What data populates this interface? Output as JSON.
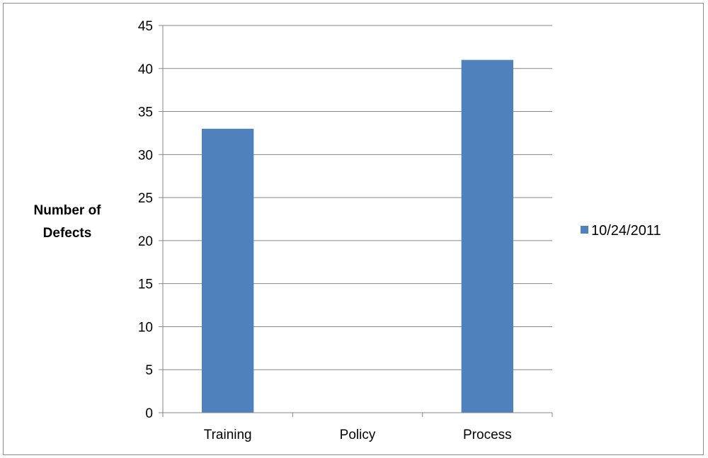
{
  "chart_data": {
    "type": "bar",
    "title": "",
    "xlabel": "",
    "ylabel": [
      "Number of",
      "Defects"
    ],
    "categories": [
      "Training",
      "Policy",
      "Process"
    ],
    "series": [
      {
        "name": "10/24/2011",
        "values": [
          33,
          0,
          41
        ],
        "color": "#4f81bd"
      }
    ],
    "ylim": [
      0,
      45
    ],
    "yticks": [
      0,
      5,
      10,
      15,
      20,
      25,
      30,
      35,
      40,
      45
    ],
    "grid": true,
    "legend_position": "right"
  }
}
